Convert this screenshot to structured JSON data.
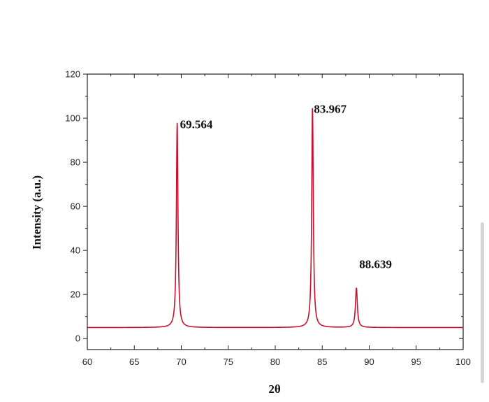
{
  "chart_data": {
    "type": "line",
    "xlabel": "2θ",
    "ylabel": "Intensity (a.u.)",
    "xlim": [
      60,
      100
    ],
    "ylim": [
      -5,
      120
    ],
    "x_ticks": [
      60,
      65,
      70,
      75,
      80,
      85,
      90,
      95,
      100
    ],
    "y_ticks": [
      0,
      20,
      40,
      60,
      80,
      100,
      120
    ],
    "grid": false,
    "line_color": "#c8102e",
    "baseline": 5,
    "peaks": [
      {
        "x": 69.564,
        "y": 98,
        "label": "69.564"
      },
      {
        "x": 83.967,
        "y": 105,
        "label": "83.967"
      },
      {
        "x": 88.639,
        "y": 23,
        "label": "88.639"
      }
    ]
  }
}
